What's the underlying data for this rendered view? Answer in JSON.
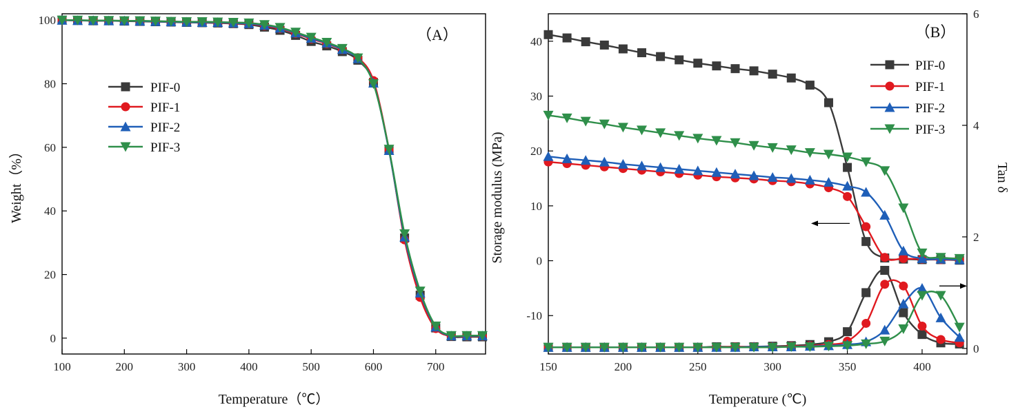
{
  "colors": {
    "PIF-0": "#3a3a3a",
    "PIF-1": "#e0191f",
    "PIF-2": "#1f5fb8",
    "PIF-3": "#2f8f4a"
  },
  "chart_data": [
    {
      "type": "line",
      "panel_label": "（A）",
      "xlabel": "Temperature（℃）",
      "ylabel": "Weight（%）",
      "xlim": [
        100,
        780
      ],
      "ylim": [
        -5,
        102
      ],
      "xticks": [
        100,
        200,
        300,
        400,
        500,
        600,
        700
      ],
      "yticks": [
        0,
        20,
        40,
        60,
        80,
        100
      ],
      "legend_position": "upper-left",
      "x": [
        100,
        125,
        150,
        175,
        200,
        225,
        250,
        275,
        300,
        325,
        350,
        375,
        400,
        425,
        450,
        475,
        500,
        525,
        550,
        575,
        600,
        625,
        650,
        675,
        700,
        725,
        750,
        775
      ],
      "series": [
        {
          "name": "PIF-0",
          "marker": "square",
          "values": [
            100,
            99.9,
            99.8,
            99.8,
            99.7,
            99.6,
            99.5,
            99.4,
            99.3,
            99.2,
            99.1,
            98.9,
            98.6,
            97.8,
            96.8,
            95.2,
            93.3,
            91.9,
            90.1,
            87.4,
            80.4,
            59.1,
            31.5,
            13.5,
            3.2,
            0.5,
            0.4,
            0.4
          ]
        },
        {
          "name": "PIF-1",
          "marker": "circle",
          "values": [
            100,
            99.9,
            99.9,
            99.8,
            99.8,
            99.7,
            99.6,
            99.5,
            99.4,
            99.3,
            99.2,
            99.0,
            98.8,
            98.2,
            97.3,
            95.8,
            94.1,
            92.6,
            90.7,
            88.2,
            81.0,
            59.3,
            30.9,
            12.8,
            3.0,
            0.6,
            0.6,
            0.6
          ]
        },
        {
          "name": "PIF-2",
          "marker": "triangle-up",
          "values": [
            100,
            99.9,
            99.9,
            99.8,
            99.8,
            99.7,
            99.6,
            99.5,
            99.4,
            99.3,
            99.3,
            99.1,
            98.9,
            98.4,
            97.5,
            96.0,
            94.3,
            92.8,
            90.8,
            87.9,
            80.2,
            59.0,
            31.8,
            14.2,
            3.5,
            0.7,
            0.7,
            0.7
          ]
        },
        {
          "name": "PIF-3",
          "marker": "triangle-down",
          "values": [
            100,
            100.0,
            99.9,
            99.9,
            99.8,
            99.8,
            99.7,
            99.6,
            99.5,
            99.5,
            99.4,
            99.3,
            99.1,
            98.6,
            97.7,
            96.2,
            94.6,
            93.0,
            91.1,
            88.1,
            80.0,
            59.4,
            32.8,
            14.8,
            3.8,
            0.8,
            0.8,
            0.8
          ]
        }
      ]
    },
    {
      "type": "line",
      "panel_label": "（B）",
      "xlabel": "Temperature (℃)",
      "ylabel": "Storage modulus (MPa)",
      "y2label": "Tan δ",
      "xlim": [
        150,
        430
      ],
      "ylim": [
        -17,
        45
      ],
      "y2lim": [
        -0.1,
        6
      ],
      "xticks": [
        150,
        200,
        250,
        300,
        350,
        400
      ],
      "yticks": [
        -10,
        0,
        10,
        20,
        30,
        40
      ],
      "y2ticks": [
        0,
        2,
        4,
        6
      ],
      "legend_position": "upper-right",
      "modulus": {
        "x": [
          150,
          162.5,
          175,
          187.5,
          200,
          212.5,
          225,
          237.5,
          250,
          262.5,
          275,
          287.5,
          300,
          312.5,
          325,
          337.5,
          350,
          362.5,
          375,
          387.5,
          400,
          412.5,
          425
        ],
        "series": [
          {
            "name": "PIF-0",
            "marker": "square",
            "values": [
              41.2,
              40.6,
              39.9,
              39.3,
              38.6,
              37.9,
              37.2,
              36.6,
              36.0,
              35.5,
              35.0,
              34.6,
              34.0,
              33.3,
              32.0,
              28.8,
              17.0,
              3.5,
              0.5,
              0.3,
              0.2,
              0.2,
              0.1
            ]
          },
          {
            "name": "PIF-1",
            "marker": "circle",
            "values": [
              18.0,
              17.7,
              17.4,
              17.1,
              16.8,
              16.5,
              16.2,
              15.9,
              15.6,
              15.3,
              15.1,
              14.9,
              14.6,
              14.4,
              14.0,
              13.3,
              11.7,
              6.2,
              0.6,
              0.4,
              0.3,
              0.2,
              0.2
            ]
          },
          {
            "name": "PIF-2",
            "marker": "triangle-up",
            "values": [
              19.0,
              18.6,
              18.3,
              18.0,
              17.6,
              17.3,
              17.0,
              16.7,
              16.4,
              16.1,
              15.8,
              15.5,
              15.2,
              15.0,
              14.7,
              14.3,
              13.6,
              12.5,
              8.3,
              1.8,
              0.4,
              0.3,
              0.2
            ]
          },
          {
            "name": "PIF-3",
            "marker": "triangle-down",
            "values": [
              26.5,
              26.0,
              25.4,
              24.9,
              24.3,
              23.8,
              23.3,
              22.8,
              22.3,
              21.9,
              21.5,
              21.0,
              20.6,
              20.2,
              19.7,
              19.4,
              18.9,
              18.0,
              16.4,
              9.6,
              1.4,
              0.6,
              0.4
            ]
          }
        ]
      },
      "tan_delta": {
        "x": [
          150,
          162.5,
          175,
          187.5,
          200,
          212.5,
          225,
          237.5,
          250,
          262.5,
          275,
          287.5,
          300,
          312.5,
          325,
          337.5,
          350,
          362.5,
          375,
          387.5,
          400,
          412.5,
          425
        ],
        "series": [
          {
            "name": "PIF-0",
            "marker": "square",
            "values": [
              0.02,
              0.02,
              0.02,
              0.02,
              0.02,
              0.02,
              0.02,
              0.02,
              0.02,
              0.03,
              0.03,
              0.03,
              0.04,
              0.05,
              0.07,
              0.12,
              0.3,
              1.0,
              1.4,
              0.64,
              0.25,
              0.1,
              0.08
            ]
          },
          {
            "name": "PIF-1",
            "marker": "circle",
            "values": [
              0.02,
              0.02,
              0.02,
              0.02,
              0.02,
              0.02,
              0.02,
              0.02,
              0.02,
              0.02,
              0.03,
              0.03,
              0.03,
              0.04,
              0.05,
              0.07,
              0.13,
              0.45,
              1.15,
              1.12,
              0.4,
              0.16,
              0.1
            ]
          },
          {
            "name": "PIF-2",
            "marker": "triangle-up",
            "values": [
              0.02,
              0.02,
              0.02,
              0.02,
              0.02,
              0.02,
              0.02,
              0.02,
              0.02,
              0.02,
              0.02,
              0.03,
              0.03,
              0.03,
              0.04,
              0.05,
              0.07,
              0.12,
              0.33,
              0.8,
              1.08,
              0.55,
              0.2
            ]
          },
          {
            "name": "PIF-3",
            "marker": "triangle-down",
            "values": [
              0.02,
              0.02,
              0.02,
              0.02,
              0.02,
              0.02,
              0.02,
              0.02,
              0.02,
              0.02,
              0.02,
              0.02,
              0.02,
              0.03,
              0.03,
              0.04,
              0.05,
              0.08,
              0.13,
              0.35,
              0.95,
              0.95,
              0.38
            ]
          }
        ]
      }
    }
  ]
}
